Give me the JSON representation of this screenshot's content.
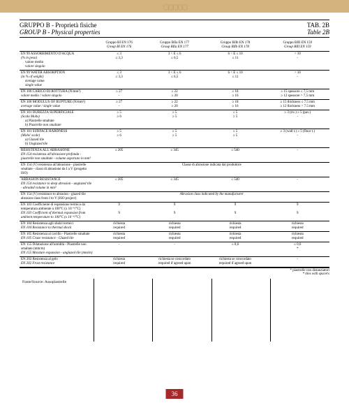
{
  "header": {
    "title_it": "GRUPPO B - Proprietà fisiche",
    "title_en": "GROUP B - Physical properties",
    "tab_it": "TAB. 2B",
    "tab_en": "Table 2B"
  },
  "columns": [
    {
      "it": "Gruppo BI EN 176",
      "en": "Group BI EN 176"
    },
    {
      "it": "Gruppo BIIa EN 177",
      "en": "Group BIIa EN 177"
    },
    {
      "it": "Gruppo BIIb EN 178",
      "en": "Group BIIb EN 178"
    },
    {
      "it": "Gruppo BIII EN 159",
      "en": "Group BIII EN 159"
    }
  ],
  "rows": [
    {
      "label_it": "EN 99 ASSORBIMENTO D'ACQUA",
      "label_en": "(% in peso)",
      "subs": [
        {
          "it": "valore medio",
          "en": "valore singolo"
        }
      ],
      "cells": [
        "≤ 3\n≤ 3,3",
        "3 < E ≤ 6\n≤ 6,5",
        "6 < E ≤ 10\n≤ 11",
        "> 10\n-"
      ]
    },
    {
      "label_it": "EN 99 WATER ABSORPTION",
      "label_en": "(in % of weight)",
      "subs": [
        {
          "it": "average value",
          "en": "single value"
        }
      ],
      "cells": [
        "≤ 3\n≤ 3,3",
        "3 < E ≤ 6\n≤ 6,5",
        "6 < E ≤ 10\n≤ 11",
        "> 10\n-"
      ]
    },
    {
      "label_it": "EN 100 CARICO DI ROTTURA (N/mm²)",
      "label_en": "valore medio / valore singolo",
      "cells": [
        "≥ 27\n-",
        "≥ 22\n≥ 20",
        "≥ 18\n≥ 16",
        "≥ 15 spessore ≤ 7,5 mm\n≥ 12 spessore > 7,5 mm"
      ]
    },
    {
      "label_it": "EN 100 MODULUS OF RUPTURE (N/mm²)",
      "label_en": "average value / single value",
      "cells": [
        "≥ 27\n-",
        "≥ 22\n≥ 20",
        "≥ 18\n≥ 16",
        "≥ 15 thickness ≤ 7.5 mm\n≥ 12 thickness > 7.5 mm"
      ]
    },
    {
      "label_it": "EN 101 DUREZZA SUPERFICIALE",
      "label_en": "(Scala Mohs)",
      "subs": [
        {
          "it": "a) Piastrelle smaltate",
          "en": "b) Piastrelle non smaltate"
        }
      ],
      "cells": [
        "≥ 5\n≥ 6",
        "≥ 5\n≥ 5",
        "≥ 5\n≥ 5",
        "≥ 3 (riv.) ≥ 5 (pav.)\n-"
      ]
    },
    {
      "label_it": "EN 101 SURFACE HARDNESS",
      "label_en": "(Mohs' scale)",
      "subs": [
        {
          "it": "a) Glazed tile",
          "en": "b) Unglazed tile"
        }
      ],
      "cells": [
        "≥ 5\n≥ 6",
        "≥ 5\n≥ 5",
        "≥ 5\n≥ 5",
        "≥ 3 (wall t.) ≥ 5 (floor t.)\n-"
      ]
    },
    {
      "label_it": "RESISTENZA ALL'ABRASIONE",
      "label_en": "EN 154 resistenza all'abrasione profonda - piastrelle non smaltate - volume asportato in mm³",
      "cells": [
        "≤ 205",
        "≤ 345",
        "≤ 540",
        "-"
      ]
    },
    {
      "label_it": "EN 154 (V) resistenza all'abrasione - piastrelle smaltate - classi di abrasione da I a V (progetto ISO)",
      "label_en": "",
      "span_it": "Classe di abrasione indicata dal produttore",
      "span_en": ""
    },
    {
      "label_it": "ABRASION RESISTANCE",
      "label_en": "EN 154 resistance to deep abrasion - unglazed tile - abraded volume in mm³",
      "cells": [
        "≤ 205",
        "≤ 345",
        "≤ 540",
        "-"
      ]
    },
    {
      "label_it": "EN 154 (V) resistance to abrasion - glazed tile abrasion class from I to V (ISO project)",
      "label_en": "",
      "span_it": "",
      "span_en": "Abrasion class indicated by the manufacturer"
    },
    {
      "label_it": "EN 103 Coefficiente di espansione termica da temperatura ambiente a 100°C (x 10⁻⁶/°C)",
      "label_en": "EN 103 Coefficient of thermal expansion from ambient temperature to 100°C (x 10⁻⁶/°C)",
      "cells": [
        "9\n\n9",
        "9\n\n9",
        "9\n\n9",
        "9\n\n9"
      ]
    },
    {
      "label_it": "EN 104 Resistenza agli sbalzi termici",
      "label_en": "EN 104 Resistance to thermal shock",
      "cells": [
        "richiesta\nrequired",
        "richiesta\nrequired",
        "richiesta\nrequired",
        "richiesta\nrequired"
      ]
    },
    {
      "label_it": "EN 105 Resistenza al cavillo - Piastrelle smaltate",
      "label_en": "EN 105 Craze resistance - Glazed tile",
      "cells": [
        "richiesta\nrequired",
        "richiesta\nrequired",
        "richiesta\nrequired",
        "richiesta\nrequired"
      ]
    },
    {
      "label_it": "EN 155 Dilatazione all'umidità - Piastrelle non smaltate (mm/m)",
      "label_en": "EN 155 Moisture expansion - unglazed tile (mm/m)",
      "cells": [
        "-",
        "-",
        "≤ 0,6",
        "≤ 0,6\n*"
      ]
    },
    {
      "label_it": "EN 202 Resistenza al gelo",
      "label_en": "EN 202 Frost resistance",
      "cells": [
        "richiesta\nrequired",
        "richiesta se concordato\nrequired if agreed upon",
        "richiesta se concordato\nrequired if agreed upon",
        "-"
      ]
    }
  ],
  "footnote": {
    "it": "* piastrelle con distanziatori",
    "en": "* tiles with spacers"
  },
  "source": "Fonte/Source: Assopiastrelle",
  "pagenum": "36"
}
